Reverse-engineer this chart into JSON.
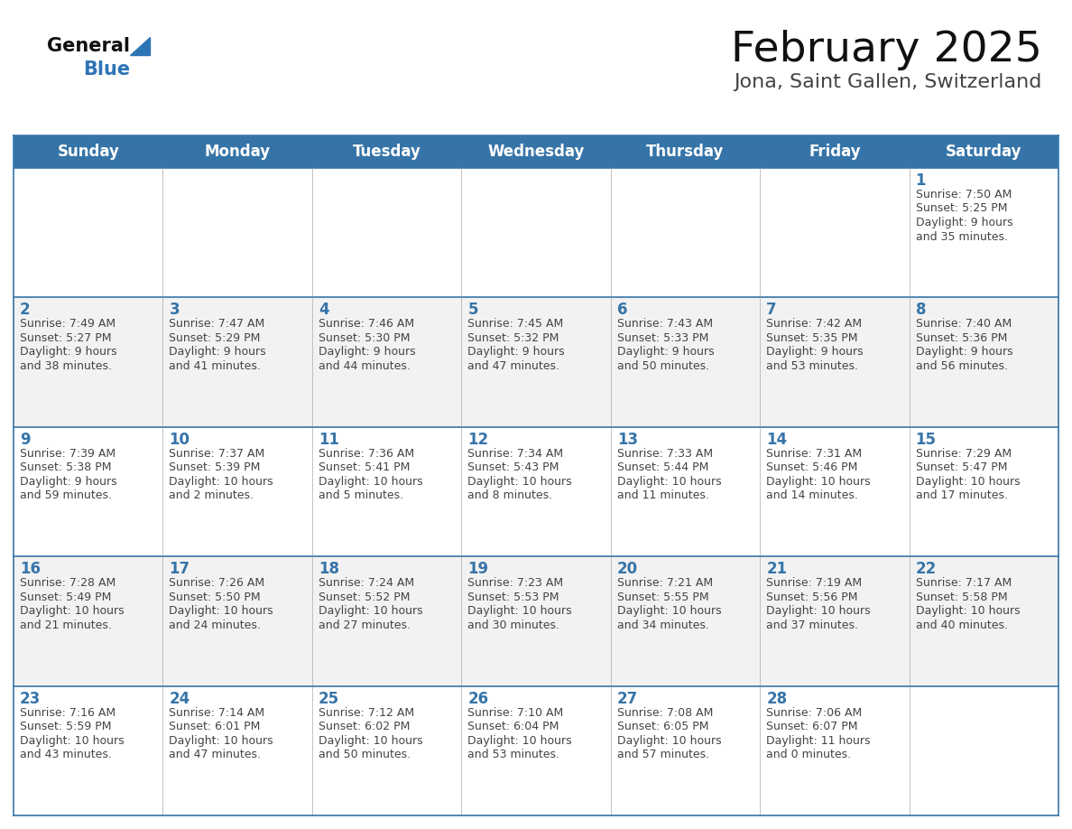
{
  "title": "February 2025",
  "subtitle": "Jona, Saint Gallen, Switzerland",
  "days_of_week": [
    "Sunday",
    "Monday",
    "Tuesday",
    "Wednesday",
    "Thursday",
    "Friday",
    "Saturday"
  ],
  "header_bg": "#3674a8",
  "header_text": "#ffffff",
  "row_bg_even": "#ffffff",
  "row_bg_odd": "#f2f2f2",
  "border_color": "#3674a8",
  "cell_border_color": "#aaaaaa",
  "text_color": "#444444",
  "day_num_color": "#3674a8",
  "title_color": "#111111",
  "subtitle_color": "#444444",
  "logo_general_color": "#111111",
  "logo_blue_color": "#2e75b6",
  "calendar_data": [
    [
      {
        "day": "",
        "info": ""
      },
      {
        "day": "",
        "info": ""
      },
      {
        "day": "",
        "info": ""
      },
      {
        "day": "",
        "info": ""
      },
      {
        "day": "",
        "info": ""
      },
      {
        "day": "",
        "info": ""
      },
      {
        "day": "1",
        "info": "Sunrise: 7:50 AM\nSunset: 5:25 PM\nDaylight: 9 hours\nand 35 minutes."
      }
    ],
    [
      {
        "day": "2",
        "info": "Sunrise: 7:49 AM\nSunset: 5:27 PM\nDaylight: 9 hours\nand 38 minutes."
      },
      {
        "day": "3",
        "info": "Sunrise: 7:47 AM\nSunset: 5:29 PM\nDaylight: 9 hours\nand 41 minutes."
      },
      {
        "day": "4",
        "info": "Sunrise: 7:46 AM\nSunset: 5:30 PM\nDaylight: 9 hours\nand 44 minutes."
      },
      {
        "day": "5",
        "info": "Sunrise: 7:45 AM\nSunset: 5:32 PM\nDaylight: 9 hours\nand 47 minutes."
      },
      {
        "day": "6",
        "info": "Sunrise: 7:43 AM\nSunset: 5:33 PM\nDaylight: 9 hours\nand 50 minutes."
      },
      {
        "day": "7",
        "info": "Sunrise: 7:42 AM\nSunset: 5:35 PM\nDaylight: 9 hours\nand 53 minutes."
      },
      {
        "day": "8",
        "info": "Sunrise: 7:40 AM\nSunset: 5:36 PM\nDaylight: 9 hours\nand 56 minutes."
      }
    ],
    [
      {
        "day": "9",
        "info": "Sunrise: 7:39 AM\nSunset: 5:38 PM\nDaylight: 9 hours\nand 59 minutes."
      },
      {
        "day": "10",
        "info": "Sunrise: 7:37 AM\nSunset: 5:39 PM\nDaylight: 10 hours\nand 2 minutes."
      },
      {
        "day": "11",
        "info": "Sunrise: 7:36 AM\nSunset: 5:41 PM\nDaylight: 10 hours\nand 5 minutes."
      },
      {
        "day": "12",
        "info": "Sunrise: 7:34 AM\nSunset: 5:43 PM\nDaylight: 10 hours\nand 8 minutes."
      },
      {
        "day": "13",
        "info": "Sunrise: 7:33 AM\nSunset: 5:44 PM\nDaylight: 10 hours\nand 11 minutes."
      },
      {
        "day": "14",
        "info": "Sunrise: 7:31 AM\nSunset: 5:46 PM\nDaylight: 10 hours\nand 14 minutes."
      },
      {
        "day": "15",
        "info": "Sunrise: 7:29 AM\nSunset: 5:47 PM\nDaylight: 10 hours\nand 17 minutes."
      }
    ],
    [
      {
        "day": "16",
        "info": "Sunrise: 7:28 AM\nSunset: 5:49 PM\nDaylight: 10 hours\nand 21 minutes."
      },
      {
        "day": "17",
        "info": "Sunrise: 7:26 AM\nSunset: 5:50 PM\nDaylight: 10 hours\nand 24 minutes."
      },
      {
        "day": "18",
        "info": "Sunrise: 7:24 AM\nSunset: 5:52 PM\nDaylight: 10 hours\nand 27 minutes."
      },
      {
        "day": "19",
        "info": "Sunrise: 7:23 AM\nSunset: 5:53 PM\nDaylight: 10 hours\nand 30 minutes."
      },
      {
        "day": "20",
        "info": "Sunrise: 7:21 AM\nSunset: 5:55 PM\nDaylight: 10 hours\nand 34 minutes."
      },
      {
        "day": "21",
        "info": "Sunrise: 7:19 AM\nSunset: 5:56 PM\nDaylight: 10 hours\nand 37 minutes."
      },
      {
        "day": "22",
        "info": "Sunrise: 7:17 AM\nSunset: 5:58 PM\nDaylight: 10 hours\nand 40 minutes."
      }
    ],
    [
      {
        "day": "23",
        "info": "Sunrise: 7:16 AM\nSunset: 5:59 PM\nDaylight: 10 hours\nand 43 minutes."
      },
      {
        "day": "24",
        "info": "Sunrise: 7:14 AM\nSunset: 6:01 PM\nDaylight: 10 hours\nand 47 minutes."
      },
      {
        "day": "25",
        "info": "Sunrise: 7:12 AM\nSunset: 6:02 PM\nDaylight: 10 hours\nand 50 minutes."
      },
      {
        "day": "26",
        "info": "Sunrise: 7:10 AM\nSunset: 6:04 PM\nDaylight: 10 hours\nand 53 minutes."
      },
      {
        "day": "27",
        "info": "Sunrise: 7:08 AM\nSunset: 6:05 PM\nDaylight: 10 hours\nand 57 minutes."
      },
      {
        "day": "28",
        "info": "Sunrise: 7:06 AM\nSunset: 6:07 PM\nDaylight: 11 hours\nand 0 minutes."
      },
      {
        "day": "",
        "info": ""
      }
    ]
  ]
}
